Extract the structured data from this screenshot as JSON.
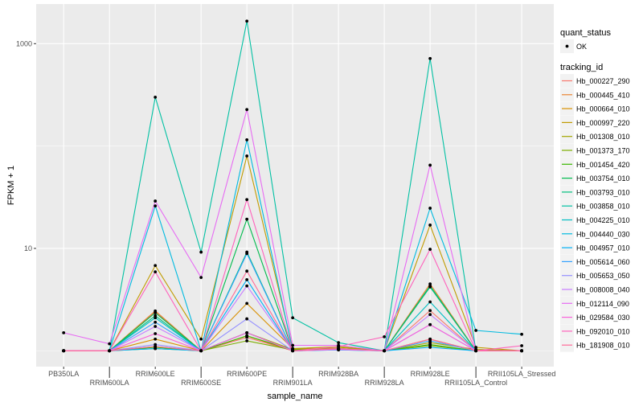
{
  "chart_data": {
    "type": "line",
    "title": "",
    "xlabel": "sample_name",
    "ylabel": "FPKM + 1",
    "yscale": "log10",
    "ylim": [
      0.7,
      2440
    ],
    "yticks": [
      {
        "value": 10,
        "label": "10"
      },
      {
        "value": 1000,
        "label": "1000"
      }
    ],
    "grid": true,
    "legend_placement": "right",
    "categories": [
      "PB350LA",
      "RRIM600LA",
      "RRIM600LE",
      "RRIM600SE",
      "RRIM600PE",
      "RRIM901LA",
      "RRIM928BA",
      "RRIM928LA",
      "RRIM928LE",
      "RRII105LA_Control",
      "RRII105LA_Stressed"
    ],
    "point_legend": {
      "title": "quant_status",
      "entries": [
        {
          "label": "OK",
          "color": "#000000"
        }
      ]
    },
    "series_legend_title": "tracking_id",
    "series": [
      {
        "name": "Hb_000227_290",
        "color": "#F8766D",
        "values": [
          1,
          1,
          2.4,
          1,
          1.35,
          1,
          1.05,
          1,
          2.47,
          1,
          1
        ]
      },
      {
        "name": "Hb_000445_410",
        "color": "#EA8331",
        "values": [
          1,
          1,
          2.45,
          1,
          1.4,
          1,
          1.05,
          1,
          4.5,
          1,
          1
        ]
      },
      {
        "name": "Hb_000664_010",
        "color": "#D89000",
        "values": [
          1,
          1,
          1.3,
          1,
          2.9,
          1.05,
          1.05,
          1,
          1.3,
          1,
          1
        ]
      },
      {
        "name": "Hb_000997_220",
        "color": "#C09B00",
        "values": [
          1,
          1,
          6.8,
          1.3,
          80,
          1.05,
          1.1,
          1,
          16.9,
          1.08,
          1
        ]
      },
      {
        "name": "Hb_001308_010",
        "color": "#A3A500",
        "values": [
          1,
          1,
          1.1,
          1,
          1.5,
          1.03,
          1.08,
          1,
          1.2,
          1.03,
          1
        ]
      },
      {
        "name": "Hb_001373_170",
        "color": "#7CAE00",
        "values": [
          1,
          1,
          1.05,
          1,
          1.25,
          1.02,
          1.04,
          1,
          1.12,
          1,
          1
        ]
      },
      {
        "name": "Hb_001454_420",
        "color": "#39B600",
        "values": [
          1,
          1,
          1.08,
          1,
          1.4,
          1.02,
          1.04,
          1,
          1.15,
          1,
          1
        ]
      },
      {
        "name": "Hb_003754_010",
        "color": "#00BB4E",
        "values": [
          1,
          1,
          2.35,
          1,
          19.3,
          1,
          1.03,
          1,
          4.3,
          1,
          1
        ]
      },
      {
        "name": "Hb_003793_010",
        "color": "#00BF7D",
        "values": [
          1,
          1,
          2.2,
          1,
          9.2,
          1,
          1.03,
          1,
          4.2,
          1,
          1
        ]
      },
      {
        "name": "Hb_003858_010",
        "color": "#00C1A3",
        "values": [
          1,
          1,
          300,
          9.2,
          1660,
          2.1,
          1.2,
          1,
          716,
          1,
          1
        ]
      },
      {
        "name": "Hb_004225_010",
        "color": "#00BFC4",
        "values": [
          1,
          1,
          2.1,
          1,
          1.5,
          1,
          1.05,
          1,
          3.0,
          1,
          1
        ]
      },
      {
        "name": "Hb_004440_030",
        "color": "#00BAE0",
        "values": [
          1,
          1,
          26,
          1,
          115,
          1,
          1.04,
          1,
          24.7,
          1.58,
          1.45
        ]
      },
      {
        "name": "Hb_004957_010",
        "color": "#00B0F6",
        "values": [
          1,
          1,
          1.05,
          1,
          4.95,
          1,
          1.02,
          1,
          1.08,
          1,
          1
        ]
      },
      {
        "name": "Hb_005614_060",
        "color": "#35A2FF",
        "values": [
          1,
          1,
          1.9,
          1,
          8.9,
          1,
          1.02,
          1,
          1.25,
          1,
          1
        ]
      },
      {
        "name": "Hb_005653_050",
        "color": "#9590FF",
        "values": [
          1,
          1,
          1.15,
          1,
          2.05,
          1,
          1.03,
          1,
          1.8,
          1,
          1
        ]
      },
      {
        "name": "Hb_008008_040",
        "color": "#C77CFF",
        "values": [
          1,
          1,
          1.73,
          1,
          4.3,
          1,
          1.03,
          1,
          2.26,
          1,
          1
        ]
      },
      {
        "name": "Hb_012114_090",
        "color": "#E76BF3",
        "values": [
          1.5,
          1.17,
          29,
          5.2,
          227,
          1.13,
          1.13,
          1,
          65,
          1,
          1
        ]
      },
      {
        "name": "Hb_029584_030",
        "color": "#FA62DB",
        "values": [
          1,
          1,
          1.47,
          1,
          1.5,
          1,
          1.03,
          1,
          1.8,
          1,
          1
        ]
      },
      {
        "name": "Hb_092010_010",
        "color": "#FF62BC",
        "values": [
          1,
          1,
          5.9,
          1,
          30,
          1,
          1.1,
          1.37,
          9.8,
          1,
          1.12
        ]
      },
      {
        "name": "Hb_181908_010",
        "color": "#FF6A98",
        "values": [
          1,
          1,
          1.1,
          1,
          6.0,
          1,
          1.05,
          1,
          1.3,
          1,
          1
        ]
      }
    ]
  }
}
